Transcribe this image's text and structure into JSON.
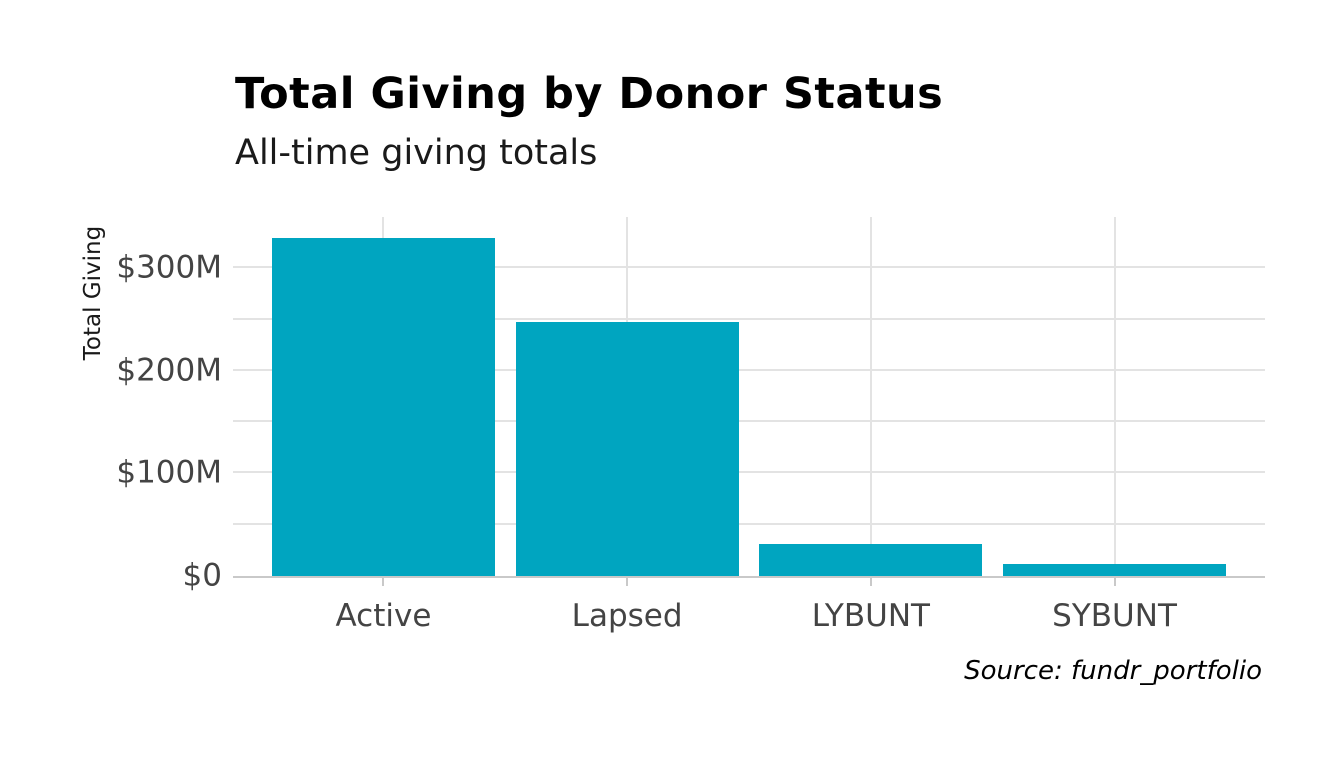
{
  "chart_data": {
    "type": "bar",
    "title": "Total Giving by Donor Status",
    "subtitle": "All-time giving totals",
    "categories": [
      "Active",
      "Lapsed",
      "LYBUNT",
      "SYBUNT"
    ],
    "values": [
      330,
      248,
      31,
      12
    ],
    "values_unit": "$M",
    "xlabel": "",
    "ylabel": "Total Giving",
    "ylim": [
      0,
      350
    ],
    "ytick_values": [
      0,
      100,
      200,
      300
    ],
    "ytick_labels": [
      "$0",
      "$100M",
      "$200M",
      "$300M"
    ],
    "gridline_values": [
      50,
      100,
      150,
      200,
      250,
      300
    ],
    "grid": "on",
    "legend": "none",
    "source": "Source: fundr_portfolio",
    "colors": {
      "bar": "#00a5c0",
      "gridline": "#e3e3e3",
      "axis_line": "#c9c9c9",
      "tick_text": "#444444",
      "title_text": "#000000",
      "subtitle_text": "#1a1a1a"
    }
  }
}
